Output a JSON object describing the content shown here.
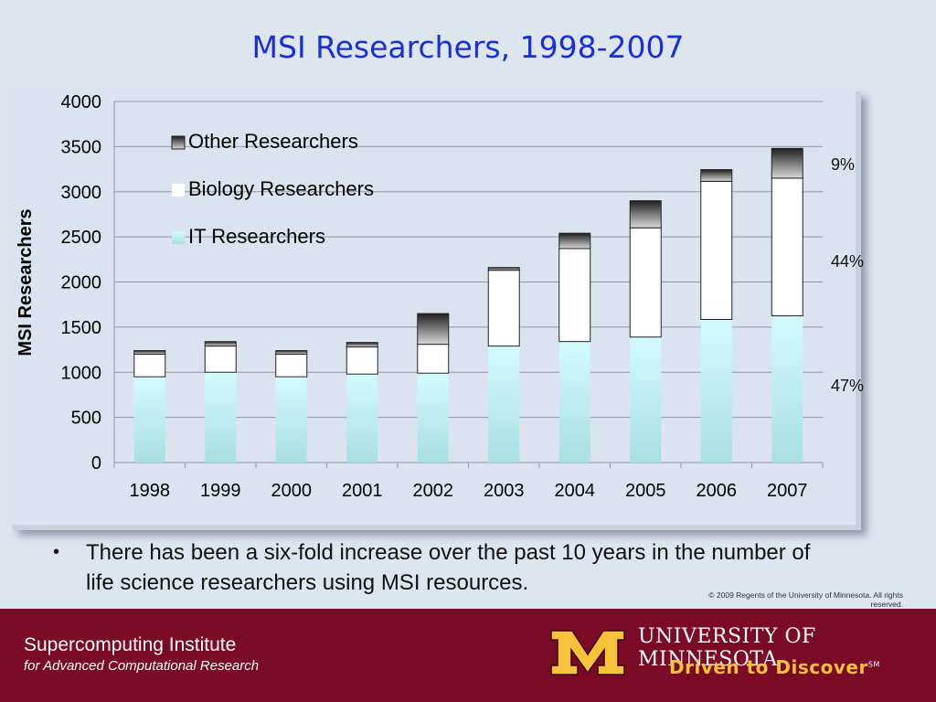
{
  "slide": {
    "title": "MSI Researchers, 1998-2007",
    "bullet": "There has been a six-fold increase over the past 10 years in the number of life science researchers using MSI resources.",
    "copyright": "© 2009 Regents of the University of Minnesota. All rights reserved."
  },
  "footer": {
    "institute": "Supercomputing Institute",
    "subtitle": "for Advanced Computational Research",
    "university": "UNIVERSITY OF MINNESOTA",
    "tagline": "Driven to Discover",
    "tagline_mark": "SM",
    "colors": {
      "maroon": "#7a0a25",
      "gold": "#f6c23a"
    }
  },
  "chart_data": {
    "type": "bar",
    "stacked": true,
    "title": "",
    "xlabel": "",
    "ylabel": "MSI Researchers",
    "ylim": [
      0,
      4000
    ],
    "yticks": [
      0,
      500,
      1000,
      1500,
      2000,
      2500,
      3000,
      3500,
      4000
    ],
    "grid": true,
    "legend_position": "top-left",
    "categories": [
      "1998",
      "1999",
      "2000",
      "2001",
      "2002",
      "2003",
      "2004",
      "2005",
      "2006",
      "2007"
    ],
    "series": [
      {
        "name": "IT Researchers",
        "color": "#c8f4f6",
        "values": [
          950,
          1000,
          950,
          980,
          990,
          1290,
          1340,
          1390,
          1585,
          1625
        ]
      },
      {
        "name": "Biology Researchers",
        "color": "#ffffff",
        "values": [
          250,
          290,
          250,
          300,
          320,
          840,
          1030,
          1210,
          1530,
          1525
        ]
      },
      {
        "name": "Other Researchers",
        "color": "#444444",
        "values": [
          40,
          50,
          40,
          50,
          340,
          30,
          170,
          300,
          130,
          330
        ]
      }
    ],
    "annotations": [
      "9%",
      "44%",
      "47%"
    ]
  }
}
